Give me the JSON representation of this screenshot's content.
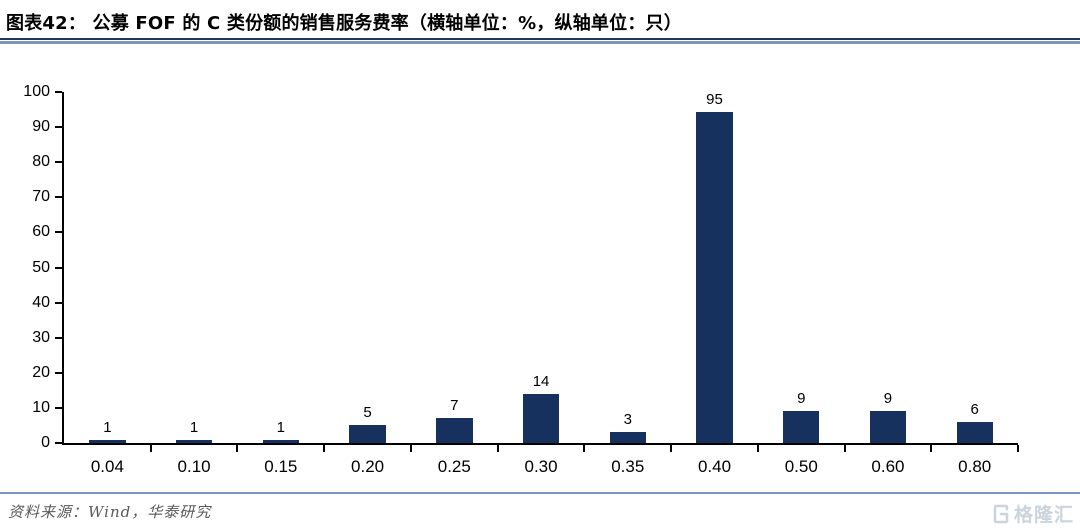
{
  "header": {
    "title": "图表42：  公募 FOF 的 C 类份额的销售服务费率（横轴单位：%，纵轴单位：只）"
  },
  "chart_data": {
    "type": "bar",
    "title": "公募 FOF 的 C 类份额的销售服务费率",
    "xlabel_unit": "%",
    "ylabel_unit": "只",
    "categories": [
      "0.04",
      "0.10",
      "0.15",
      "0.20",
      "0.25",
      "0.30",
      "0.35",
      "0.40",
      "0.50",
      "0.60",
      "0.80"
    ],
    "values": [
      1,
      1,
      1,
      5,
      7,
      14,
      3,
      95,
      9,
      9,
      6
    ],
    "ylim": [
      0,
      100
    ],
    "ytick_step": 10,
    "value_labels": true,
    "grid": false,
    "legend": "none",
    "bar_color": "#17315F",
    "axis_color": "#000000"
  },
  "footer": {
    "source": "资料来源：Wind，华泰研究"
  },
  "watermark": {
    "icon": "gelonghui-g-logo",
    "label": "格隆汇"
  },
  "colors": {
    "separator_dark": "#1F3864",
    "separator_light": "#7E96BE",
    "footer_text": "#595959",
    "watermark": "#C6D0DA"
  }
}
